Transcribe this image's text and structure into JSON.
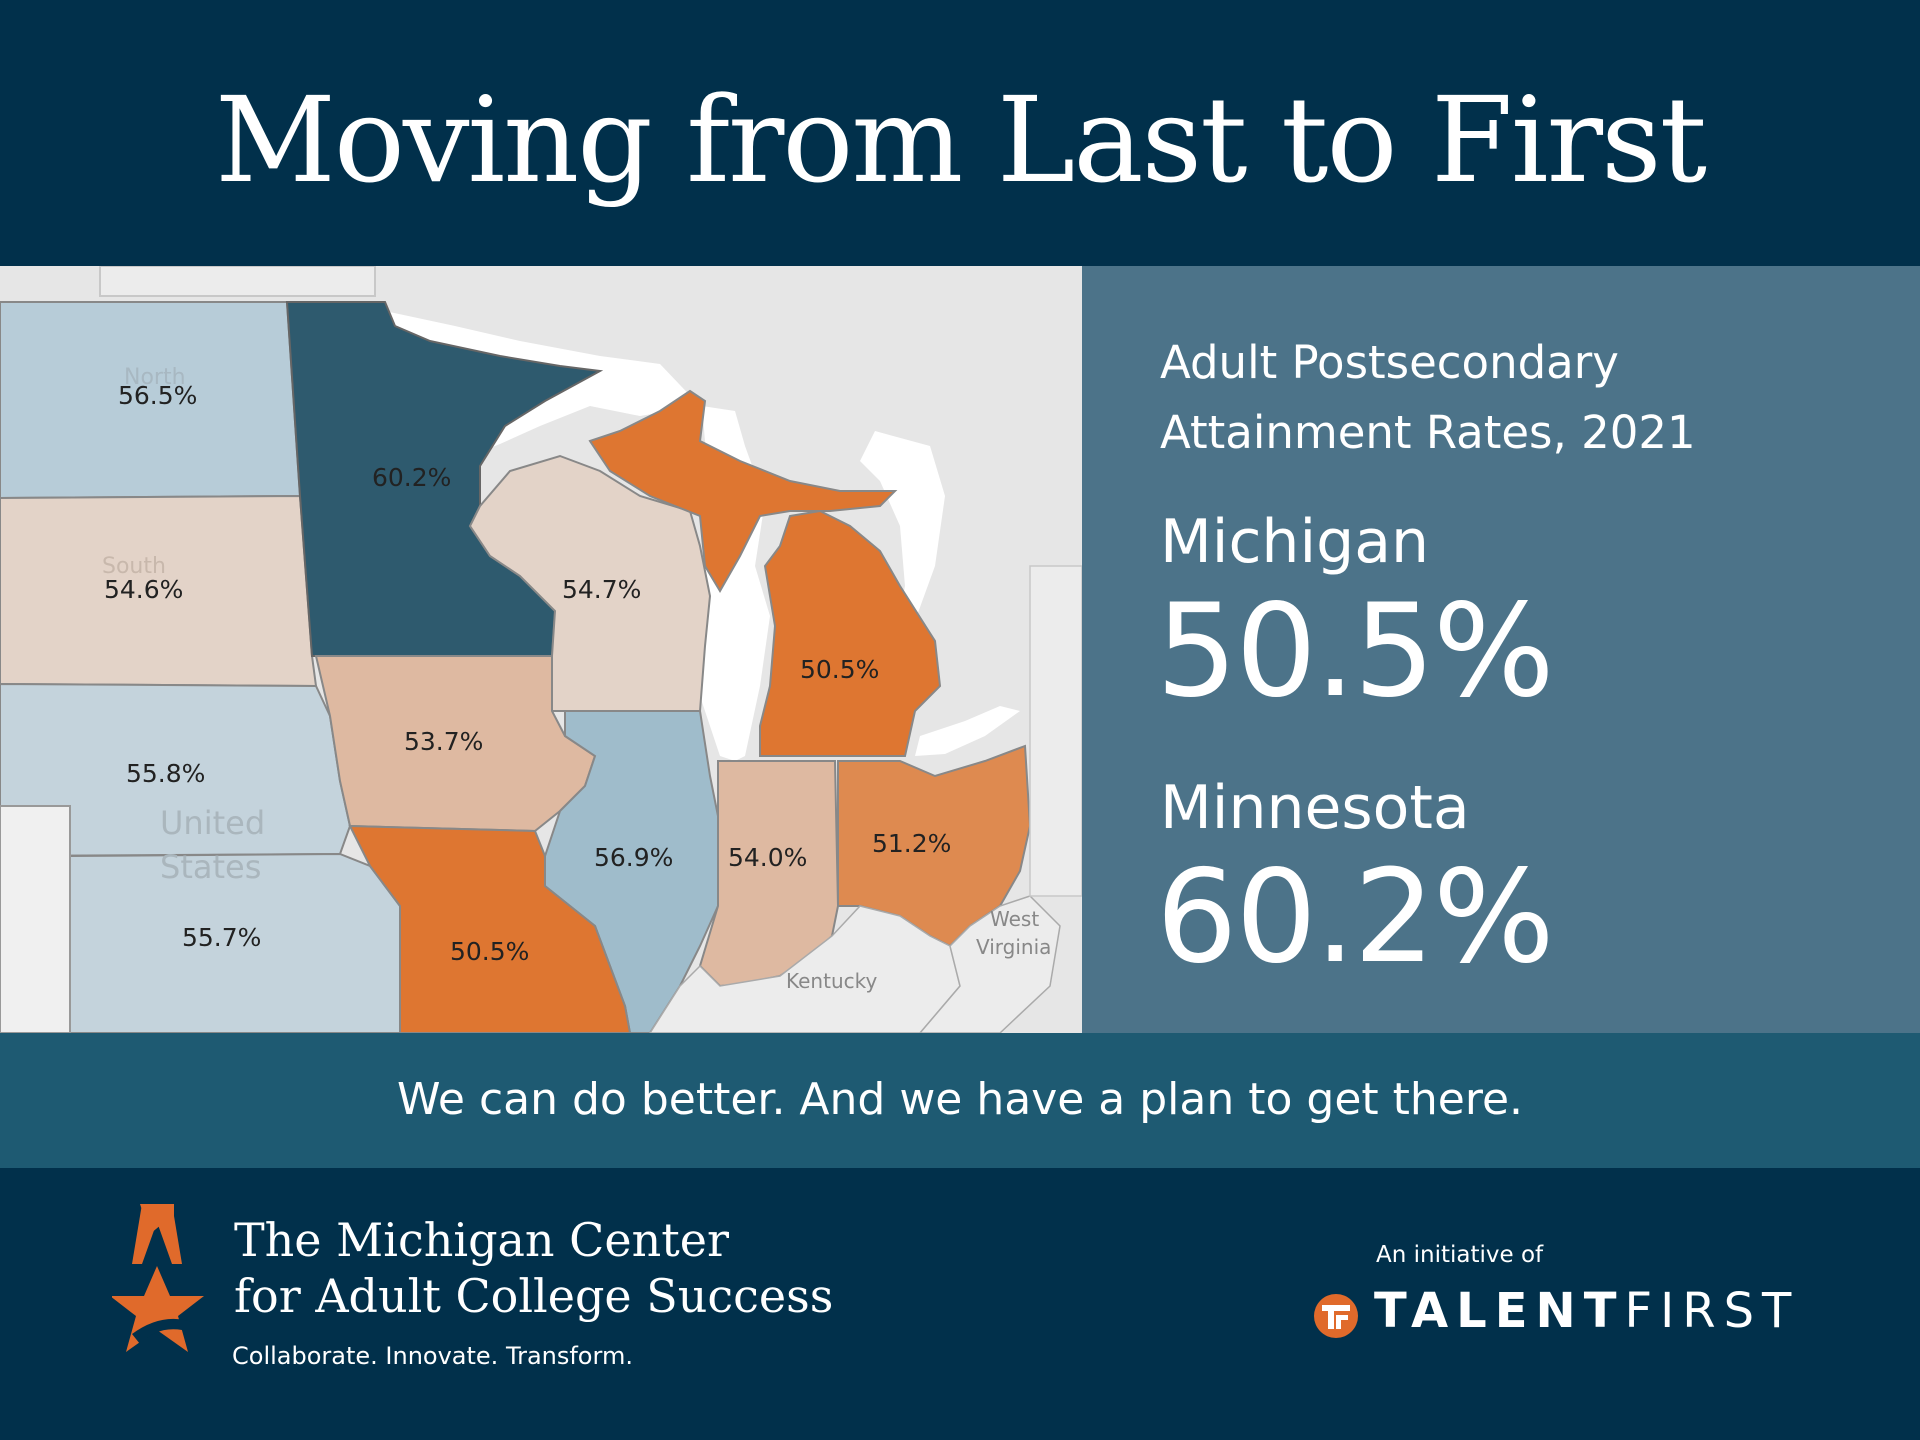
{
  "title": "Moving from Last to First",
  "side_panel": {
    "subtitle": "Adult Postsecondary Attainment Rates, 2021",
    "states": [
      {
        "name": "Michigan",
        "value": "50.5%"
      },
      {
        "name": "Minnesota",
        "value": "60.2%"
      }
    ]
  },
  "map": {
    "colors": {
      "water": "#ffffff",
      "background": "#e6e6e6",
      "highest": "#2e5a6e",
      "high": "#9fbccb",
      "mid_high": "#b7ccd8",
      "mid": "#c4d3dc",
      "mid_low": "#e3d3c8",
      "low": "#deb9a1",
      "lowest": "#de7631"
    },
    "states": [
      {
        "id": "north-dakota",
        "value": "56.5%",
        "name": "North"
      },
      {
        "id": "minnesota",
        "value": "60.2%"
      },
      {
        "id": "south-dakota",
        "value": "54.6%",
        "name": "South"
      },
      {
        "id": "wisconsin",
        "value": "54.7%"
      },
      {
        "id": "michigan",
        "value": "50.5%"
      },
      {
        "id": "nebraska",
        "value": "55.8%"
      },
      {
        "id": "iowa",
        "value": "53.7%"
      },
      {
        "id": "illinois",
        "value": "56.9%"
      },
      {
        "id": "indiana",
        "value": "54.0%"
      },
      {
        "id": "ohio",
        "value": "51.2%"
      },
      {
        "id": "kansas",
        "value": "55.7%"
      },
      {
        "id": "missouri",
        "value": "50.5%"
      }
    ],
    "place_labels": {
      "united_states_1": "United",
      "united_states_2": "States",
      "kentucky": "Kentucky",
      "west_virginia_1": "West",
      "west_virginia_2": "Virginia"
    }
  },
  "band": {
    "message": "We can do better. And we have a plan to get there."
  },
  "footer": {
    "org_line1": "The Michigan Center",
    "org_line2": "for Adult College Success",
    "tagline": "Collaborate. Innovate. Transform.",
    "initiative_label": "An initiative of",
    "partner_bold": "TALENT",
    "partner_light": "FIRST",
    "logo_icon": "star-a-icon",
    "partner_icon": "talentfirst-t-icon",
    "accent_color": "#e06a2b"
  }
}
